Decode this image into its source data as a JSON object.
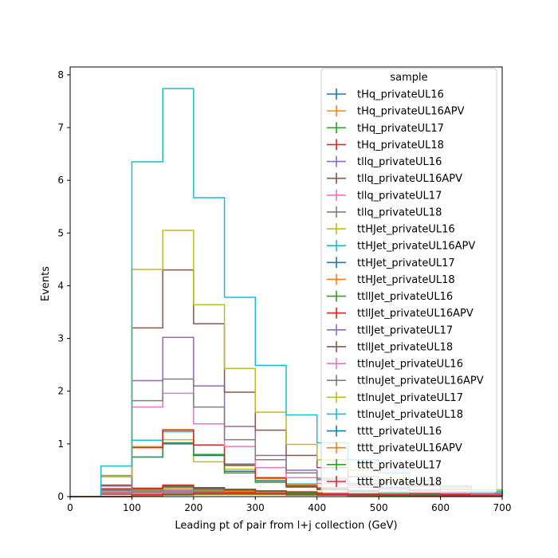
{
  "chart_data": {
    "type": "histogram-step",
    "xlabel": "Leading pt of pair from l+j collection (GeV)",
    "ylabel": "Events",
    "xlim": [
      0,
      700
    ],
    "ylim": [
      0,
      8.15
    ],
    "xticks": [
      0,
      100,
      200,
      300,
      400,
      500,
      600,
      700
    ],
    "yticks": [
      0,
      1,
      2,
      3,
      4,
      5,
      6,
      7,
      8
    ],
    "grid": false,
    "legend_title": "sample",
    "legend_position": "top-right",
    "bin_edges": [
      0,
      50,
      100,
      150,
      200,
      250,
      300,
      350,
      400,
      450,
      500,
      550,
      600,
      650,
      700
    ],
    "series": [
      {
        "name": "tHq_privateUL16",
        "color": "#1f77b4",
        "values": [
          0,
          0.1,
          0.15,
          0.2,
          0.15,
          0.12,
          0.1,
          0.08,
          0.06,
          0.05,
          0.04,
          0.03,
          0.02,
          0.02
        ]
      },
      {
        "name": "tHq_privateUL16APV",
        "color": "#ff7f0e",
        "values": [
          0,
          0.08,
          0.12,
          0.15,
          0.12,
          0.1,
          0.08,
          0.06,
          0.05,
          0.04,
          0.03,
          0.02,
          0.02,
          0.01
        ]
      },
      {
        "name": "tHq_privateUL17",
        "color": "#2ca02c",
        "values": [
          0,
          0.1,
          0.14,
          0.18,
          0.14,
          0.12,
          0.1,
          0.07,
          0.06,
          0.05,
          0.04,
          0.03,
          0.02,
          0.02
        ]
      },
      {
        "name": "tHq_privateUL18",
        "color": "#d62728",
        "values": [
          0,
          0.12,
          0.16,
          0.22,
          0.17,
          0.14,
          0.11,
          0.09,
          0.07,
          0.05,
          0.04,
          0.03,
          0.03,
          0.02
        ]
      },
      {
        "name": "tllq_privateUL16",
        "color": "#9467bd",
        "values": [
          0,
          0.05,
          0.08,
          0.1,
          0.08,
          0.07,
          0.05,
          0.04,
          0.03,
          0.03,
          0.02,
          0.02,
          0.01,
          0.01
        ]
      },
      {
        "name": "tllq_privateUL16APV",
        "color": "#8c564b",
        "values": [
          0,
          0.04,
          0.07,
          0.08,
          0.07,
          0.06,
          0.05,
          0.04,
          0.03,
          0.02,
          0.02,
          0.01,
          0.01,
          0.01
        ]
      },
      {
        "name": "tllq_privateUL17",
        "color": "#e377c2",
        "values": [
          0,
          0.05,
          0.08,
          0.1,
          0.08,
          0.07,
          0.05,
          0.04,
          0.03,
          0.03,
          0.02,
          0.02,
          0.01,
          0.01
        ]
      },
      {
        "name": "tllq_privateUL18",
        "color": "#7f7f7f",
        "values": [
          0,
          0.06,
          0.1,
          0.12,
          0.1,
          0.08,
          0.06,
          0.05,
          0.04,
          0.03,
          0.02,
          0.02,
          0.02,
          0.01
        ]
      },
      {
        "name": "ttHJet_privateUL16",
        "color": "#bcbd22",
        "values": [
          0,
          0.38,
          0.95,
          1.08,
          0.66,
          0.52,
          0.3,
          0.2,
          0.14,
          0.1,
          0.07,
          0.05,
          0.04,
          0.03
        ]
      },
      {
        "name": "ttHJet_privateUL16APV",
        "color": "#17becf",
        "values": [
          0,
          0.4,
          1.07,
          1.23,
          0.78,
          0.62,
          0.36,
          0.24,
          0.17,
          0.12,
          0.09,
          0.06,
          0.05,
          0.04
        ]
      },
      {
        "name": "ttHJet_privateUL17",
        "color": "#1f77b4",
        "values": [
          0,
          0.38,
          0.75,
          1.0,
          0.78,
          0.48,
          0.3,
          0.2,
          0.14,
          0.1,
          0.07,
          0.05,
          0.04,
          0.03
        ]
      },
      {
        "name": "ttHJet_privateUL18",
        "color": "#ff7f0e",
        "values": [
          0,
          0.39,
          0.93,
          1.27,
          0.98,
          0.59,
          0.34,
          0.22,
          0.16,
          0.11,
          0.08,
          0.06,
          0.04,
          0.03
        ]
      },
      {
        "name": "ttllJet_privateUL16",
        "color": "#2ca02c",
        "values": [
          0,
          0.13,
          0.75,
          1.02,
          0.8,
          0.45,
          0.27,
          0.18,
          0.13,
          0.09,
          0.07,
          0.05,
          0.04,
          0.03
        ]
      },
      {
        "name": "ttllJet_privateUL16APV",
        "color": "#d62728",
        "values": [
          0,
          0.15,
          0.93,
          1.26,
          0.98,
          0.6,
          0.36,
          0.2,
          0.15,
          0.11,
          0.08,
          0.06,
          0.04,
          0.03
        ]
      },
      {
        "name": "ttllJet_privateUL17",
        "color": "#9467bd",
        "values": [
          0,
          0.2,
          2.2,
          3.02,
          2.1,
          1.33,
          0.78,
          0.5,
          0.35,
          0.25,
          0.18,
          0.13,
          0.09,
          0.07
        ]
      },
      {
        "name": "ttllJet_privateUL18",
        "color": "#8c564b",
        "values": [
          0,
          0.22,
          3.2,
          4.3,
          3.28,
          1.98,
          1.26,
          0.78,
          0.55,
          0.38,
          0.27,
          0.2,
          0.14,
          0.1
        ]
      },
      {
        "name": "ttlnuJet_privateUL16",
        "color": "#e377c2",
        "values": [
          0,
          0.1,
          1.7,
          1.96,
          1.38,
          0.95,
          0.55,
          0.36,
          0.25,
          0.18,
          0.13,
          0.09,
          0.07,
          0.05
        ]
      },
      {
        "name": "ttlnuJet_privateUL16APV",
        "color": "#7f7f7f",
        "values": [
          0,
          0.12,
          1.82,
          2.23,
          1.7,
          1.08,
          0.7,
          0.45,
          0.32,
          0.22,
          0.16,
          0.12,
          0.08,
          0.06
        ]
      },
      {
        "name": "ttlnuJet_privateUL17",
        "color": "#bcbd22",
        "values": [
          0,
          0.38,
          4.31,
          5.05,
          3.64,
          2.43,
          1.6,
          0.99,
          0.7,
          0.5,
          0.35,
          0.25,
          0.18,
          0.13
        ]
      },
      {
        "name": "ttlnuJet_privateUL18",
        "color": "#17becf",
        "values": [
          0,
          0.58,
          6.35,
          7.74,
          5.67,
          3.78,
          2.49,
          1.55,
          1.02,
          0.7,
          0.45,
          0.3,
          0.2,
          0.1
        ]
      },
      {
        "name": "tttt_privateUL16",
        "color": "#1f77b4",
        "values": [
          0,
          0,
          0.02,
          0.03,
          0.04,
          0.04,
          0.04,
          0.03,
          0.03,
          0.02,
          0.02,
          0.01,
          0.01,
          0.01
        ]
      },
      {
        "name": "tttt_privateUL16APV",
        "color": "#ff7f0e",
        "values": [
          0,
          0,
          0.02,
          0.03,
          0.04,
          0.04,
          0.04,
          0.03,
          0.03,
          0.02,
          0.02,
          0.01,
          0.01,
          0.01
        ]
      },
      {
        "name": "tttt_privateUL17",
        "color": "#2ca02c",
        "values": [
          0,
          0,
          0.03,
          0.04,
          0.05,
          0.05,
          0.05,
          0.04,
          0.03,
          0.03,
          0.02,
          0.02,
          0.01,
          0.01
        ]
      },
      {
        "name": "tttt_privateUL18",
        "color": "#d62728",
        "values": [
          0,
          0,
          0.04,
          0.05,
          0.07,
          0.07,
          0.06,
          0.05,
          0.04,
          0.03,
          0.03,
          0.02,
          0.02,
          0.01
        ]
      }
    ]
  }
}
